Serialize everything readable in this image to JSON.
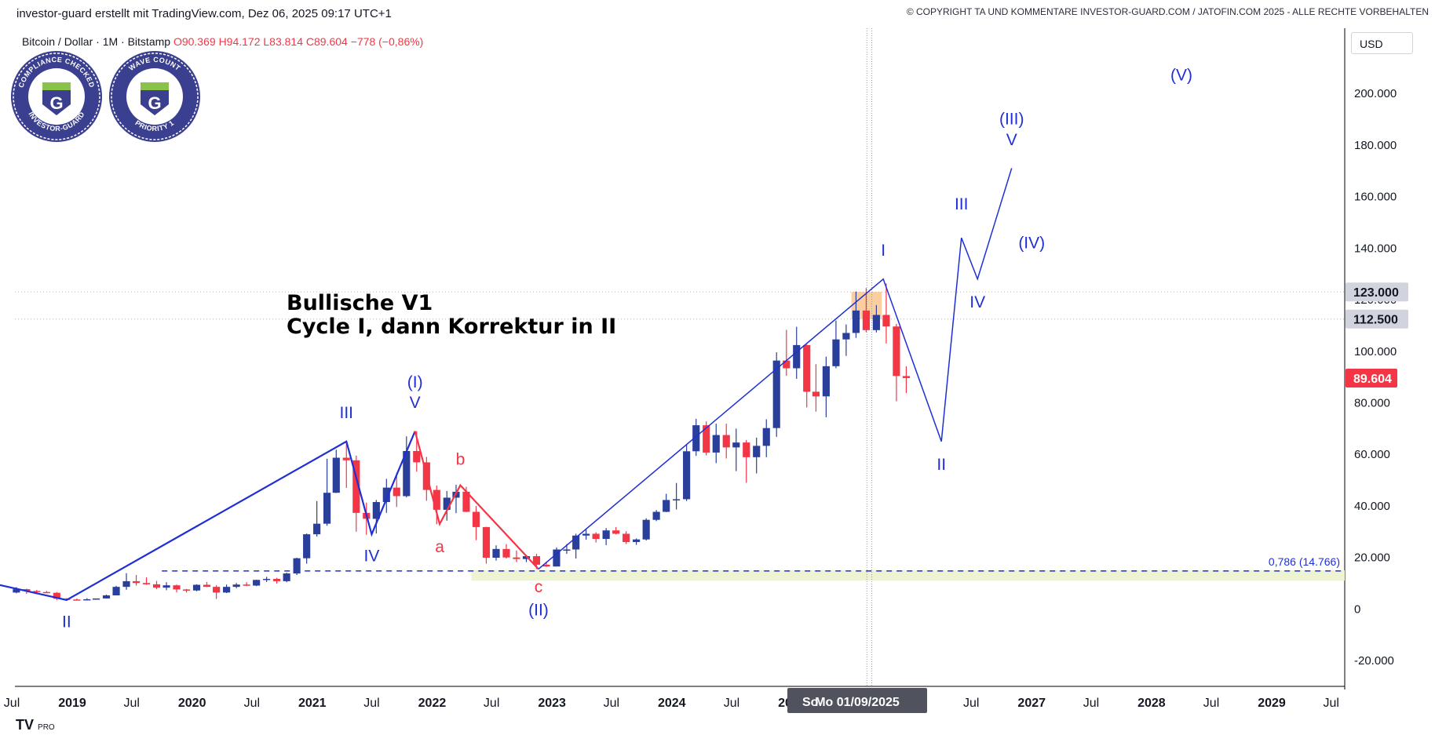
{
  "header": {
    "created_by": "investor-guard erstellt mit TradingView.com, Dez 06, 2025 09:17 UTC+1",
    "copyright": "© COPYRIGHT TA UND KOMMENTARE INVESTOR-GUARD.COM / JATOFIN.COM 2025 - ALLE RECHTE VORBEHALTEN"
  },
  "legend": {
    "symbol": "Bitcoin / Dollar · 1M · Bitstamp",
    "open": "O90.369",
    "high": "H94.172",
    "low": "L83.814",
    "close": "C89.604",
    "change": "−778 (−0,86%)"
  },
  "currency_button": "USD",
  "badges": [
    {
      "top_text": "COMPLIANCE CHECKED",
      "bottom_text": "INVESTOR-GUARD",
      "icon": "investor-guard-g-logo"
    },
    {
      "top_text": "WAVE COUNT",
      "bottom_text": "PRIORITY 1",
      "icon": "investor-guard-g-logo"
    }
  ],
  "branding": {
    "logo": "TV",
    "tag": "PRO"
  },
  "chart_data": {
    "type": "candlestick",
    "symbol": "Bitcoin / Dollar",
    "interval": "1M",
    "exchange": "Bitstamp",
    "ylim": [
      -30000,
      225000
    ],
    "y_ticks": [
      -20000,
      0,
      20000,
      40000,
      60000,
      80000,
      100000,
      120000,
      140000,
      160000,
      180000,
      200000
    ],
    "y_tick_labels": [
      "-20.000",
      "0",
      "20.000",
      "40.000",
      "60.000",
      "80.000",
      "100.000",
      "120.000",
      "140.000",
      "160.000",
      "180.000",
      "200.000"
    ],
    "x_ticks": [
      {
        "label": "Jul",
        "date": "2018-07-01"
      },
      {
        "label": "2019",
        "date": "2019-01-01"
      },
      {
        "label": "Jul",
        "date": "2019-07-01"
      },
      {
        "label": "2020",
        "date": "2020-01-01"
      },
      {
        "label": "Jul",
        "date": "2020-07-01"
      },
      {
        "label": "2021",
        "date": "2021-01-01"
      },
      {
        "label": "Jul",
        "date": "2021-07-01"
      },
      {
        "label": "2022",
        "date": "2022-01-01"
      },
      {
        "label": "Jul",
        "date": "2022-07-01"
      },
      {
        "label": "2023",
        "date": "2023-01-01"
      },
      {
        "label": "Jul",
        "date": "2023-07-01"
      },
      {
        "label": "2024",
        "date": "2024-01-01"
      },
      {
        "label": "Jul",
        "date": "2024-07-01"
      },
      {
        "label": "2025",
        "date": "2025-01-01"
      },
      {
        "label": "Jul",
        "date": "2026-07-01"
      },
      {
        "label": "2027",
        "date": "2027-01-01"
      },
      {
        "label": "Jul",
        "date": "2027-07-01"
      },
      {
        "label": "2028",
        "date": "2028-01-01"
      },
      {
        "label": "Jul",
        "date": "2028-07-01"
      },
      {
        "label": "2029",
        "date": "2029-01-01"
      },
      {
        "label": "Jul",
        "date": "2029-07-01"
      }
    ],
    "crosshair_labels": [
      "So",
      "Mo 01/09/2025"
    ],
    "price_labels": [
      {
        "value": 123000,
        "text": "123.000",
        "style": "gray"
      },
      {
        "value": 112500,
        "text": "112.500",
        "style": "gray"
      },
      {
        "value": 89604,
        "text": "89.604",
        "style": "red"
      }
    ],
    "candles": [
      {
        "date": "2018-07",
        "o": 6400,
        "h": 8500,
        "l": 6100,
        "c": 7700
      },
      {
        "date": "2018-08",
        "o": 7700,
        "h": 7900,
        "l": 5900,
        "c": 7000
      },
      {
        "date": "2018-09",
        "o": 7000,
        "h": 7400,
        "l": 6100,
        "c": 6600
      },
      {
        "date": "2018-10",
        "o": 6600,
        "h": 7000,
        "l": 6200,
        "c": 6300
      },
      {
        "date": "2018-11",
        "o": 6300,
        "h": 6600,
        "l": 3500,
        "c": 4000
      },
      {
        "date": "2018-12",
        "o": 4000,
        "h": 4300,
        "l": 3200,
        "c": 3700
      },
      {
        "date": "2019-01",
        "o": 3700,
        "h": 4100,
        "l": 3400,
        "c": 3400
      },
      {
        "date": "2019-02",
        "o": 3400,
        "h": 4200,
        "l": 3400,
        "c": 3800
      },
      {
        "date": "2019-03",
        "o": 3800,
        "h": 4100,
        "l": 3700,
        "c": 4100
      },
      {
        "date": "2019-04",
        "o": 4100,
        "h": 5600,
        "l": 4100,
        "c": 5300
      },
      {
        "date": "2019-05",
        "o": 5300,
        "h": 9000,
        "l": 5300,
        "c": 8600
      },
      {
        "date": "2019-06",
        "o": 8600,
        "h": 13900,
        "l": 7500,
        "c": 10800
      },
      {
        "date": "2019-07",
        "o": 10800,
        "h": 13200,
        "l": 9100,
        "c": 10100
      },
      {
        "date": "2019-08",
        "o": 10100,
        "h": 12300,
        "l": 9400,
        "c": 9600
      },
      {
        "date": "2019-09",
        "o": 9600,
        "h": 10900,
        "l": 7700,
        "c": 8300
      },
      {
        "date": "2019-10",
        "o": 8300,
        "h": 10400,
        "l": 7300,
        "c": 9200
      },
      {
        "date": "2019-11",
        "o": 9200,
        "h": 9500,
        "l": 6500,
        "c": 7600
      },
      {
        "date": "2019-12",
        "o": 7600,
        "h": 7800,
        "l": 6400,
        "c": 7200
      },
      {
        "date": "2020-01",
        "o": 7200,
        "h": 9600,
        "l": 6900,
        "c": 9400
      },
      {
        "date": "2020-02",
        "o": 9400,
        "h": 10500,
        "l": 8500,
        "c": 8600
      },
      {
        "date": "2020-03",
        "o": 8600,
        "h": 9200,
        "l": 3900,
        "c": 6400
      },
      {
        "date": "2020-04",
        "o": 6400,
        "h": 9500,
        "l": 6200,
        "c": 8600
      },
      {
        "date": "2020-05",
        "o": 8600,
        "h": 10100,
        "l": 8100,
        "c": 9500
      },
      {
        "date": "2020-06",
        "o": 9500,
        "h": 10400,
        "l": 8900,
        "c": 9100
      },
      {
        "date": "2020-07",
        "o": 9100,
        "h": 11400,
        "l": 8900,
        "c": 11300
      },
      {
        "date": "2020-08",
        "o": 11300,
        "h": 12500,
        "l": 10500,
        "c": 11700
      },
      {
        "date": "2020-09",
        "o": 11700,
        "h": 12100,
        "l": 9900,
        "c": 10800
      },
      {
        "date": "2020-10",
        "o": 10800,
        "h": 14100,
        "l": 10400,
        "c": 13800
      },
      {
        "date": "2020-11",
        "o": 13800,
        "h": 19900,
        "l": 13200,
        "c": 19700
      },
      {
        "date": "2020-12",
        "o": 19700,
        "h": 29300,
        "l": 17600,
        "c": 29000
      },
      {
        "date": "2021-01",
        "o": 29000,
        "h": 41900,
        "l": 28100,
        "c": 33100
      },
      {
        "date": "2021-02",
        "o": 33100,
        "h": 58300,
        "l": 32300,
        "c": 45100
      },
      {
        "date": "2021-03",
        "o": 45100,
        "h": 61800,
        "l": 45000,
        "c": 58700
      },
      {
        "date": "2021-04",
        "o": 58700,
        "h": 64800,
        "l": 47000,
        "c": 57700
      },
      {
        "date": "2021-05",
        "o": 57700,
        "h": 59500,
        "l": 30000,
        "c": 37300
      },
      {
        "date": "2021-06",
        "o": 37300,
        "h": 41300,
        "l": 28800,
        "c": 35000
      },
      {
        "date": "2021-07",
        "o": 35000,
        "h": 42300,
        "l": 29300,
        "c": 41500
      },
      {
        "date": "2021-08",
        "o": 41500,
        "h": 50500,
        "l": 37300,
        "c": 47100
      },
      {
        "date": "2021-09",
        "o": 47100,
        "h": 52900,
        "l": 39600,
        "c": 43800
      },
      {
        "date": "2021-10",
        "o": 43800,
        "h": 67000,
        "l": 43300,
        "c": 61300
      },
      {
        "date": "2021-11",
        "o": 61300,
        "h": 69000,
        "l": 53300,
        "c": 56900
      },
      {
        "date": "2021-12",
        "o": 56900,
        "h": 59000,
        "l": 42000,
        "c": 46200
      },
      {
        "date": "2022-01",
        "o": 46200,
        "h": 47900,
        "l": 32900,
        "c": 38500
      },
      {
        "date": "2022-02",
        "o": 38500,
        "h": 45800,
        "l": 34300,
        "c": 43200
      },
      {
        "date": "2022-03",
        "o": 43200,
        "h": 48200,
        "l": 37200,
        "c": 45500
      },
      {
        "date": "2022-04",
        "o": 45500,
        "h": 47400,
        "l": 37600,
        "c": 37700
      },
      {
        "date": "2022-05",
        "o": 37700,
        "h": 40000,
        "l": 26700,
        "c": 31800
      },
      {
        "date": "2022-06",
        "o": 31800,
        "h": 31900,
        "l": 17600,
        "c": 19900
      },
      {
        "date": "2022-07",
        "o": 19900,
        "h": 24700,
        "l": 18800,
        "c": 23300
      },
      {
        "date": "2022-08",
        "o": 23300,
        "h": 25200,
        "l": 19600,
        "c": 20000
      },
      {
        "date": "2022-09",
        "o": 20000,
        "h": 22700,
        "l": 18200,
        "c": 19400
      },
      {
        "date": "2022-10",
        "o": 19400,
        "h": 21000,
        "l": 18200,
        "c": 20500
      },
      {
        "date": "2022-11",
        "o": 20500,
        "h": 21400,
        "l": 15500,
        "c": 17200
      },
      {
        "date": "2022-12",
        "o": 17200,
        "h": 18400,
        "l": 16300,
        "c": 16500
      },
      {
        "date": "2023-01",
        "o": 16500,
        "h": 23900,
        "l": 16500,
        "c": 23100
      },
      {
        "date": "2023-02",
        "o": 23100,
        "h": 25200,
        "l": 21400,
        "c": 23100
      },
      {
        "date": "2023-03",
        "o": 23100,
        "h": 29200,
        "l": 19600,
        "c": 28500
      },
      {
        "date": "2023-04",
        "o": 28500,
        "h": 31000,
        "l": 26900,
        "c": 29200
      },
      {
        "date": "2023-05",
        "o": 29200,
        "h": 29800,
        "l": 25800,
        "c": 27200
      },
      {
        "date": "2023-06",
        "o": 27200,
        "h": 31400,
        "l": 24800,
        "c": 30500
      },
      {
        "date": "2023-07",
        "o": 30500,
        "h": 31800,
        "l": 28900,
        "c": 29200
      },
      {
        "date": "2023-08",
        "o": 29200,
        "h": 30200,
        "l": 25200,
        "c": 26000
      },
      {
        "date": "2023-09",
        "o": 26000,
        "h": 27400,
        "l": 24900,
        "c": 27000
      },
      {
        "date": "2023-10",
        "o": 27000,
        "h": 35200,
        "l": 26600,
        "c": 34600
      },
      {
        "date": "2023-11",
        "o": 34600,
        "h": 38400,
        "l": 34100,
        "c": 37700
      },
      {
        "date": "2023-12",
        "o": 37700,
        "h": 44700,
        "l": 37600,
        "c": 42300
      },
      {
        "date": "2024-01",
        "o": 42300,
        "h": 48900,
        "l": 38600,
        "c": 42600
      },
      {
        "date": "2024-02",
        "o": 42600,
        "h": 64000,
        "l": 41900,
        "c": 61200
      },
      {
        "date": "2024-03",
        "o": 61200,
        "h": 73800,
        "l": 59400,
        "c": 71300
      },
      {
        "date": "2024-04",
        "o": 71300,
        "h": 72800,
        "l": 59600,
        "c": 60700
      },
      {
        "date": "2024-05",
        "o": 60700,
        "h": 71900,
        "l": 56600,
        "c": 67500
      },
      {
        "date": "2024-06",
        "o": 67500,
        "h": 71900,
        "l": 58400,
        "c": 62700
      },
      {
        "date": "2024-07",
        "o": 62700,
        "h": 70000,
        "l": 53500,
        "c": 64600
      },
      {
        "date": "2024-08",
        "o": 64600,
        "h": 65600,
        "l": 49000,
        "c": 58900
      },
      {
        "date": "2024-09",
        "o": 58900,
        "h": 66500,
        "l": 52600,
        "c": 63300
      },
      {
        "date": "2024-10",
        "o": 63300,
        "h": 73600,
        "l": 58900,
        "c": 70200
      },
      {
        "date": "2024-11",
        "o": 70200,
        "h": 99600,
        "l": 66800,
        "c": 96400
      },
      {
        "date": "2024-12",
        "o": 96400,
        "h": 108300,
        "l": 90500,
        "c": 93400
      },
      {
        "date": "2025-01",
        "o": 93400,
        "h": 109500,
        "l": 89300,
        "c": 102400
      },
      {
        "date": "2025-02",
        "o": 102400,
        "h": 102700,
        "l": 78200,
        "c": 84300
      },
      {
        "date": "2025-03",
        "o": 84300,
        "h": 95000,
        "l": 76600,
        "c": 82500
      },
      {
        "date": "2025-04",
        "o": 82500,
        "h": 97900,
        "l": 74400,
        "c": 94200
      },
      {
        "date": "2025-05",
        "o": 94200,
        "h": 111900,
        "l": 93400,
        "c": 104600
      },
      {
        "date": "2025-06",
        "o": 104600,
        "h": 110400,
        "l": 98200,
        "c": 107100
      },
      {
        "date": "2025-07",
        "o": 107100,
        "h": 123200,
        "l": 105200,
        "c": 115800
      },
      {
        "date": "2025-08",
        "o": 115800,
        "h": 124500,
        "l": 107400,
        "c": 108200
      },
      {
        "date": "2025-09",
        "o": 108200,
        "h": 117900,
        "l": 107300,
        "c": 114100
      },
      {
        "date": "2025-10",
        "o": 114100,
        "h": 126300,
        "l": 103000,
        "c": 109600
      },
      {
        "date": "2025-11",
        "o": 109600,
        "h": 110600,
        "l": 80600,
        "c": 90400
      },
      {
        "date": "2025-12",
        "o": 90369,
        "h": 94172,
        "l": 83814,
        "c": 89604
      }
    ],
    "drawings": {
      "resistance_zone": {
        "x_start": "2025-07",
        "x_end": "2025-10",
        "y_low": 112500,
        "y_high": 123000
      },
      "support_line": {
        "value": 14766,
        "label": "0,786 (14.766)",
        "x_start": "2019-10"
      },
      "support_zone": {
        "x_start": "2022-05",
        "y_low": 11000,
        "y_high": 15000
      },
      "crosshair_dates": [
        "2025-08-17",
        "2025-09-01"
      ],
      "elliott_waves": [
        {
          "name": "historical-primary-count",
          "color": "#1e2fd6",
          "points": [
            {
              "date": "2018-05",
              "value": 10000
            },
            {
              "date": "2018-12-15",
              "value": 3500,
              "label": "II"
            },
            {
              "date": "2021-04-15",
              "value": 65000,
              "label": "III"
            },
            {
              "date": "2021-07",
              "value": 29000,
              "label": "IV"
            },
            {
              "date": "2021-11-10",
              "value": 69000,
              "label": "V"
            }
          ]
        },
        {
          "name": "abc-correction",
          "color": "#f23645",
          "points": [
            {
              "date": "2021-11-10",
              "value": 69000
            },
            {
              "date": "2022-01-24",
              "value": 33000,
              "label": "a"
            },
            {
              "date": "2022-03-28",
              "value": 48000,
              "label": "b"
            },
            {
              "date": "2022-11-21",
              "value": 15500,
              "label": "c"
            }
          ]
        },
        {
          "name": "current-cycle-and-forecast",
          "color": "#1e2fd6",
          "points": [
            {
              "date": "2022-11-21",
              "value": 15500
            },
            {
              "date": "2025-10-06",
              "value": 128000,
              "label": "I"
            },
            {
              "date": "2026-04",
              "value": 65000,
              "label": "II"
            },
            {
              "date": "2026-06",
              "value": 144000,
              "label": "III"
            },
            {
              "date": "2026-07-20",
              "value": 128000,
              "label": "IV"
            },
            {
              "date": "2026-11",
              "value": 171000,
              "label": "V"
            }
          ]
        }
      ],
      "labels": [
        {
          "text": "II",
          "date": "2018-12-15",
          "value": -7000,
          "color": "#1e2fd6"
        },
        {
          "text": "III",
          "date": "2021-04-15",
          "value": 74000,
          "color": "#1e2fd6"
        },
        {
          "text": "IV",
          "date": "2021-07",
          "value": 18500,
          "color": "#1e2fd6"
        },
        {
          "text": "(I)",
          "date": "2021-11-10",
          "value": 86000,
          "color": "#1e2fd6"
        },
        {
          "text": "V",
          "date": "2021-11-10",
          "value": 78000,
          "color": "#1e2fd6"
        },
        {
          "text": "a",
          "date": "2022-01-24",
          "value": 22000,
          "color": "#f23645"
        },
        {
          "text": "b",
          "date": "2022-03-28",
          "value": 56000,
          "color": "#f23645"
        },
        {
          "text": "c",
          "date": "2022-11-21",
          "value": 6500,
          "color": "#f23645"
        },
        {
          "text": "(II)",
          "date": "2022-11-21",
          "value": -2500,
          "color": "#1e2fd6"
        },
        {
          "text": "I",
          "date": "2025-10-06",
          "value": 137000,
          "color": "#1e2fd6"
        },
        {
          "text": "II",
          "date": "2026-04",
          "value": 54000,
          "color": "#1e2fd6"
        },
        {
          "text": "III",
          "date": "2026-06",
          "value": 155000,
          "color": "#1e2fd6"
        },
        {
          "text": "IV",
          "date": "2026-07-20",
          "value": 117000,
          "color": "#1e2fd6"
        },
        {
          "text": "(III)",
          "date": "2026-11",
          "value": 188000,
          "color": "#1e2fd6"
        },
        {
          "text": "V",
          "date": "2026-11",
          "value": 180000,
          "color": "#1e2fd6"
        },
        {
          "text": "(IV)",
          "date": "2027-01",
          "value": 140000,
          "color": "#1e2fd6"
        },
        {
          "text": "(V)",
          "date": "2028-04",
          "value": 205000,
          "color": "#1e2fd6"
        }
      ]
    },
    "annotation": {
      "line1": "Bullische V1",
      "line2": "Cycle I, dann Korrektur in II"
    }
  }
}
